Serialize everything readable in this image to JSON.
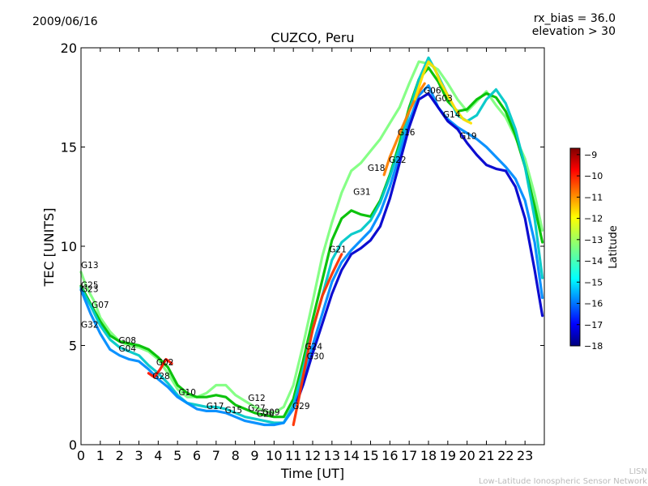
{
  "header": {
    "date": "2009/06/16",
    "rx_bias": "rx_bias = 36.0",
    "elevation": "elevation > 30"
  },
  "footer": {
    "line1": "LISN",
    "line2": "Low-Latitude Ionospheric Sensor Network"
  },
  "chart_data": {
    "type": "scatter",
    "title": "CUZCO, Peru",
    "xlabel": "Time [UT]",
    "ylabel": "TEC [UNITS]",
    "xlim": [
      0,
      24
    ],
    "ylim": [
      0,
      20
    ],
    "xticks": [
      "0",
      "1",
      "2",
      "3",
      "4",
      "5",
      "6",
      "7",
      "8",
      "9",
      "10",
      "11",
      "12",
      "13",
      "14",
      "15",
      "16",
      "17",
      "18",
      "19",
      "20",
      "21",
      "22",
      "23"
    ],
    "yticks": [
      "0",
      "5",
      "10",
      "15",
      "20"
    ],
    "grid": false,
    "colorbar": {
      "label": "Latitude",
      "range": [
        -18,
        -8.7
      ],
      "ticks": [
        "−9",
        "−10",
        "−11",
        "−12",
        "−13",
        "−14",
        "−15",
        "−16",
        "−17",
        "−18"
      ],
      "colormap": [
        "#00007f",
        "#0000ff",
        "#007fff",
        "#00ffff",
        "#7fff7f",
        "#ffff00",
        "#ff7f00",
        "#ff0000",
        "#7f0000"
      ]
    },
    "satellite_labels": [
      {
        "name": "G13",
        "x": 0.0,
        "y": 8.9
      },
      {
        "name": "G25",
        "x": 0.0,
        "y": 7.9
      },
      {
        "name": "G23",
        "x": 0.0,
        "y": 7.7
      },
      {
        "name": "G07",
        "x": 0.55,
        "y": 6.9
      },
      {
        "name": "G32",
        "x": 0.0,
        "y": 5.9
      },
      {
        "name": "G08",
        "x": 1.95,
        "y": 5.1
      },
      {
        "name": "G04",
        "x": 1.95,
        "y": 4.7
      },
      {
        "name": "G02",
        "x": 3.9,
        "y": 4.0
      },
      {
        "name": "G28",
        "x": 3.7,
        "y": 3.3
      },
      {
        "name": "G10",
        "x": 5.05,
        "y": 2.5
      },
      {
        "name": "G17",
        "x": 6.5,
        "y": 1.8
      },
      {
        "name": "G15",
        "x": 7.45,
        "y": 1.6
      },
      {
        "name": "G12",
        "x": 8.65,
        "y": 2.2
      },
      {
        "name": "G27",
        "x": 8.65,
        "y": 1.7
      },
      {
        "name": "G26",
        "x": 9.1,
        "y": 1.4
      },
      {
        "name": "G09",
        "x": 9.4,
        "y": 1.5
      },
      {
        "name": "G29",
        "x": 10.95,
        "y": 1.8
      },
      {
        "name": "G24",
        "x": 11.6,
        "y": 4.8
      },
      {
        "name": "G30",
        "x": 11.7,
        "y": 4.3
      },
      {
        "name": "G21",
        "x": 12.85,
        "y": 9.7
      },
      {
        "name": "G31",
        "x": 14.1,
        "y": 12.6
      },
      {
        "name": "G18",
        "x": 14.85,
        "y": 13.8
      },
      {
        "name": "G22",
        "x": 15.95,
        "y": 14.2
      },
      {
        "name": "G16",
        "x": 16.4,
        "y": 15.6
      },
      {
        "name": "G06",
        "x": 17.75,
        "y": 17.7
      },
      {
        "name": "G03",
        "x": 18.35,
        "y": 17.3
      },
      {
        "name": "G14",
        "x": 18.75,
        "y": 16.5
      },
      {
        "name": "G19",
        "x": 19.6,
        "y": 15.4
      }
    ],
    "series": [
      {
        "color": "#7fff7f",
        "x": [
          0,
          0.3,
          0.7,
          1,
          1.5,
          2,
          2.5,
          3,
          3.5,
          4,
          4.5,
          5,
          5.5,
          6,
          6.5,
          7,
          7.5,
          8,
          8.5,
          9,
          9.5,
          10,
          10.5,
          11,
          11.5,
          12,
          12.5,
          13,
          13.5,
          14,
          14.5,
          15,
          15.5,
          16,
          16.5,
          17,
          17.5,
          18,
          18.5,
          19,
          19.5,
          20,
          20.5,
          21,
          21.5,
          22,
          22.5,
          23,
          23.5,
          23.9
        ],
        "y": [
          8.7,
          7.9,
          7.2,
          6.4,
          5.7,
          5.2,
          5.0,
          4.9,
          4.7,
          4.3,
          3.6,
          2.8,
          2.4,
          2.4,
          2.6,
          3.0,
          3.0,
          2.5,
          2.2,
          1.9,
          1.7,
          1.6,
          1.9,
          3.0,
          5.0,
          7.2,
          9.5,
          11.2,
          12.7,
          13.8,
          14.2,
          14.8,
          15.4,
          16.2,
          17.0,
          18.2,
          19.3,
          19.2,
          18.9,
          18.2,
          17.4,
          16.8,
          17.3,
          17.8,
          17.1,
          16.5,
          15.5,
          14.4,
          12.6,
          10.8
        ]
      },
      {
        "color": "#00c000",
        "x": [
          0,
          0.5,
          1,
          1.5,
          2,
          2.5,
          3,
          3.5,
          4,
          4.5,
          5,
          5.5,
          6,
          6.5,
          7,
          7.5,
          8,
          8.5,
          9,
          9.5,
          10,
          10.5,
          11,
          11.5,
          12,
          12.5,
          13,
          13.5,
          14,
          14.5,
          15,
          15.5,
          16,
          16.5,
          17,
          17.5,
          18,
          18.5,
          19,
          19.5,
          20,
          20.5,
          21,
          21.5,
          22,
          22.5,
          23,
          23.5,
          23.9
        ],
        "y": [
          8.0,
          7.1,
          6.2,
          5.5,
          5.2,
          5.1,
          5.0,
          4.8,
          4.4,
          3.9,
          3.0,
          2.6,
          2.4,
          2.4,
          2.5,
          2.4,
          2.0,
          1.8,
          1.6,
          1.5,
          1.4,
          1.4,
          2.3,
          4.2,
          6.3,
          8.3,
          10.3,
          11.4,
          11.8,
          11.6,
          11.5,
          12.3,
          13.6,
          15.2,
          17.0,
          18.4,
          19.0,
          18.3,
          17.3,
          16.8,
          16.9,
          17.4,
          17.7,
          17.5,
          16.8,
          15.6,
          14.0,
          12.0,
          10.2
        ]
      },
      {
        "color": "#00c8c8",
        "x": [
          0,
          0.5,
          1,
          1.5,
          2,
          2.5,
          3,
          3.5,
          4,
          4.5,
          5,
          5.5,
          6,
          6.5,
          7,
          7.5,
          8,
          8.5,
          9,
          9.5,
          10,
          10.5,
          11,
          11.5,
          12,
          12.5,
          13,
          13.5,
          14,
          14.5,
          15,
          15.5,
          16,
          16.5,
          17,
          17.5,
          18,
          18.5,
          19,
          19.5,
          20,
          20.5,
          21,
          21.5,
          22,
          22.5,
          23,
          23.5,
          23.9
        ],
        "y": [
          7.9,
          7.0,
          6.0,
          5.3,
          4.9,
          4.7,
          4.5,
          4.0,
          3.6,
          3.1,
          2.5,
          2.1,
          2.0,
          1.9,
          1.9,
          1.8,
          1.6,
          1.4,
          1.3,
          1.2,
          1.1,
          1.1,
          2.0,
          3.8,
          5.8,
          7.5,
          9.3,
          10.2,
          10.6,
          10.8,
          11.3,
          12.2,
          13.5,
          15.0,
          16.8,
          18.4,
          19.5,
          18.6,
          17.6,
          16.6,
          16.3,
          16.6,
          17.4,
          17.9,
          17.2,
          15.9,
          14.0,
          11.4,
          8.4
        ]
      },
      {
        "color": "#008cff",
        "x": [
          0,
          0.5,
          1,
          1.5,
          2,
          2.5,
          3,
          3.5,
          4,
          4.5,
          5,
          5.5,
          6,
          6.5,
          7,
          7.5,
          8,
          8.5,
          9,
          9.5,
          10,
          10.5,
          11,
          11.5,
          12,
          12.5,
          13,
          13.5,
          14,
          14.5,
          15,
          15.5,
          16,
          16.5,
          17,
          17.5,
          18,
          18.5,
          19,
          19.5,
          20,
          20.5,
          21,
          21.5,
          22,
          22.5,
          23,
          23.5,
          23.9
        ],
        "y": [
          7.8,
          6.6,
          5.6,
          4.8,
          4.5,
          4.3,
          4.2,
          3.8,
          3.3,
          2.9,
          2.4,
          2.1,
          1.8,
          1.7,
          1.7,
          1.6,
          1.4,
          1.2,
          1.1,
          1.0,
          1.0,
          1.1,
          1.8,
          3.3,
          5.0,
          6.6,
          8.2,
          9.2,
          9.8,
          10.3,
          10.8,
          11.7,
          13.0,
          14.6,
          16.3,
          17.6,
          18.1,
          17.0,
          16.4,
          16.0,
          15.7,
          15.4,
          15.0,
          14.5,
          14.0,
          13.4,
          12.3,
          10.2,
          7.4
        ]
      },
      {
        "color": "#0000cd",
        "x": [
          11.2,
          11.5,
          12,
          12.5,
          13,
          13.5,
          14,
          14.5,
          15,
          15.5,
          16,
          16.5,
          17,
          17.5,
          18,
          18.5,
          19,
          19.5,
          20,
          20.5,
          21,
          21.5,
          22,
          22.5,
          23,
          23.5,
          23.9
        ],
        "y": [
          2.2,
          3.0,
          4.6,
          6.1,
          7.6,
          8.8,
          9.6,
          9.9,
          10.3,
          11.0,
          12.4,
          14.2,
          16.0,
          17.4,
          17.7,
          17.0,
          16.3,
          15.9,
          15.2,
          14.6,
          14.1,
          13.9,
          13.8,
          13.0,
          11.4,
          8.8,
          6.5
        ]
      },
      {
        "color": "#ff3000",
        "x": [
          11,
          11.3,
          11.7,
          12,
          12.5,
          13,
          13.5
        ],
        "y": [
          1.0,
          2.4,
          4.4,
          5.8,
          7.5,
          8.6,
          9.6
        ]
      },
      {
        "color": "#ff7f00",
        "x": [
          15.7,
          16,
          16.3,
          16.6,
          17,
          17.4,
          17.8
        ],
        "y": [
          13.6,
          14.5,
          15.2,
          15.9,
          16.8,
          17.6,
          18.2
        ]
      },
      {
        "color": "#ffe000",
        "x": [
          17.3,
          17.7,
          18,
          18.3,
          18.6,
          19,
          19.4,
          19.8,
          20.2
        ],
        "y": [
          17.4,
          18.6,
          19.3,
          19.0,
          18.3,
          17.6,
          16.9,
          16.4,
          16.2
        ]
      },
      {
        "color": "#ff1400",
        "x": [
          3.5,
          3.8,
          4.1,
          4.4,
          4.7
        ],
        "y": [
          3.6,
          3.4,
          3.8,
          4.3,
          4.1
        ]
      }
    ]
  }
}
